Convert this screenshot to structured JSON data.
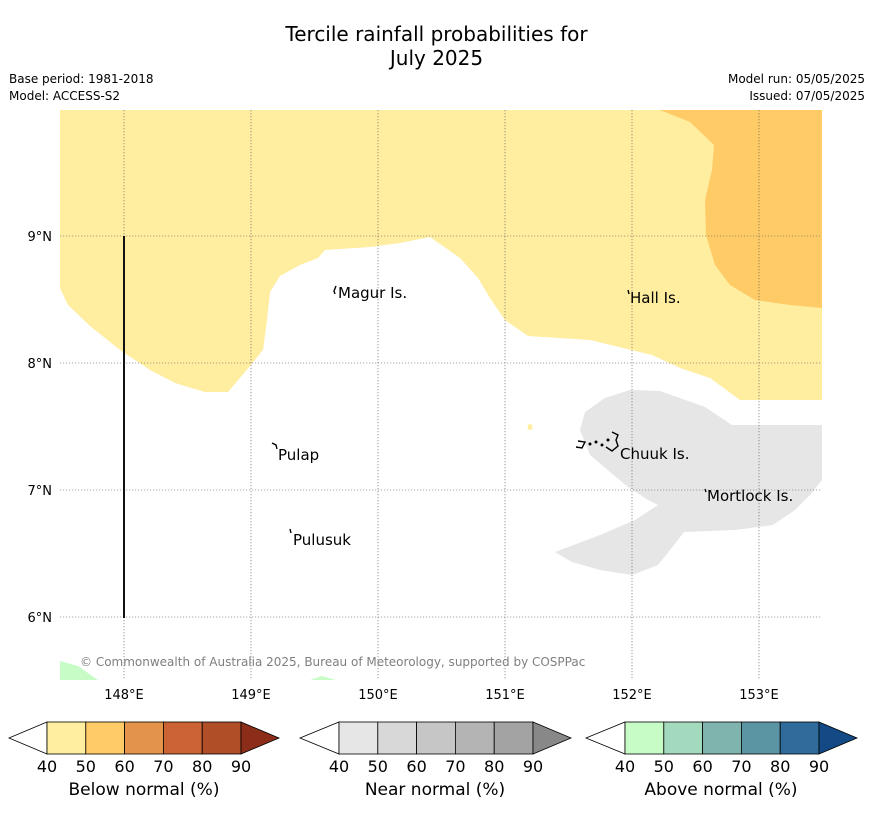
{
  "title_line1": "Tercile rainfall probabilities for",
  "title_line2": "July 2025",
  "meta": {
    "base_period": "Base period: 1981-2018",
    "model": "Model: ACCESS-S2",
    "model_run": "Model run: 05/05/2025",
    "issued": "Issued: 07/05/2025"
  },
  "map": {
    "lon_range": [
      147.5,
      153.5
    ],
    "lat_range": [
      5.5,
      10.0
    ],
    "lon_ticks": [
      "148°E",
      "149°E",
      "150°E",
      "151°E",
      "152°E",
      "153°E"
    ],
    "lat_ticks": [
      "9°N",
      "8°N",
      "7°N",
      "6°N"
    ],
    "places": [
      "Magur Is.",
      "Hall Is.",
      "Pulap",
      "Chuuk Is.",
      "Mortlock Is.",
      "Pulusuk"
    ],
    "copyright": "© Commonwealth of Australia 2025, Bureau of Meteorology, supported by COSPPac",
    "grid": true
  },
  "colorbars": [
    {
      "title": "Below normal (%)",
      "ticks": [
        "40",
        "50",
        "60",
        "70",
        "80",
        "90"
      ],
      "colors": [
        "#ffeda0",
        "#fecb66",
        "#e3944a",
        "#cc6334",
        "#b04e28",
        "#8c2d1a"
      ]
    },
    {
      "title": "Near normal (%)",
      "ticks": [
        "40",
        "50",
        "60",
        "70",
        "80",
        "90"
      ],
      "colors": [
        "#e6e6e6",
        "#d8d8d8",
        "#c6c6c6",
        "#b4b4b4",
        "#a3a3a3",
        "#888888"
      ]
    },
    {
      "title": "Above normal (%)",
      "ticks": [
        "40",
        "50",
        "60",
        "70",
        "80",
        "90"
      ],
      "colors": [
        "#c7fcc7",
        "#a3d9bd",
        "#7fb3ae",
        "#5b94a3",
        "#316b9b",
        "#134a86"
      ]
    }
  ],
  "colors": {
    "below_40_50": "#ffeda0",
    "below_50_60": "#fecb66",
    "near_40_50": "#e6e6e6",
    "above_40_50": "#c7fcc7"
  }
}
